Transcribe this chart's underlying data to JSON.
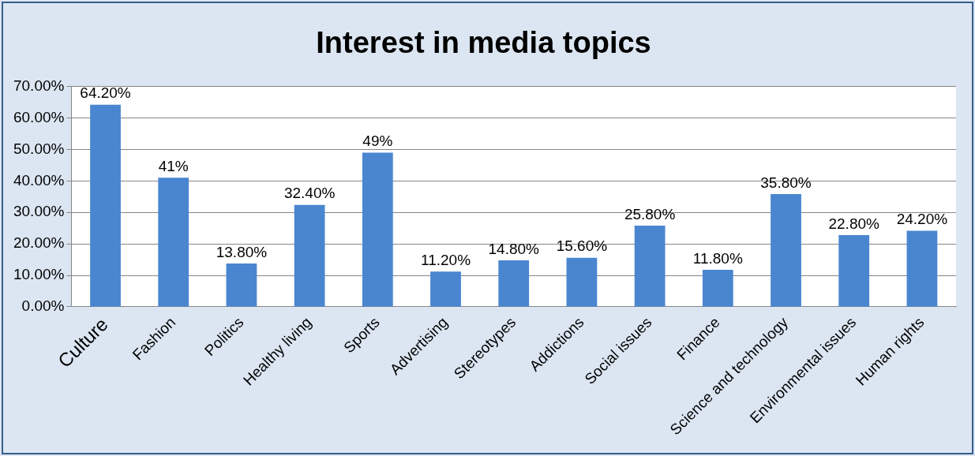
{
  "chart_data": {
    "type": "bar",
    "title": "Interest in media topics",
    "categories": [
      "Culture",
      "Fashion",
      "Politics",
      "Healthy living",
      "Sports",
      "Advertising",
      "Stereotypes",
      "Addictions",
      "Social issues",
      "Finance",
      "Science and technology",
      "Environmental issues",
      "Human rights"
    ],
    "values": [
      64.2,
      41,
      13.8,
      32.4,
      49,
      11.2,
      14.8,
      15.6,
      25.8,
      11.8,
      35.8,
      22.8,
      24.2
    ],
    "value_labels": [
      "64.20%",
      "41%",
      "13.80%",
      "32.40%",
      "49%",
      "11.20%",
      "14.80%",
      "15.60%",
      "25.80%",
      "11.80%",
      "35.80%",
      "22.80%",
      "24.20%"
    ],
    "color": "#4a86d0",
    "ylim": [
      0,
      70
    ],
    "yticks": [
      {
        "value": 0,
        "label": "0.00%"
      },
      {
        "value": 10,
        "label": "10.00%"
      },
      {
        "value": 20,
        "label": "20.00%"
      },
      {
        "value": 30,
        "label": "30.00%"
      },
      {
        "value": 40,
        "label": "40.00%"
      },
      {
        "value": 50,
        "label": "50.00%"
      },
      {
        "value": 60,
        "label": "60.00%"
      },
      {
        "value": 70,
        "label": "70.00%"
      }
    ],
    "grid": "y",
    "legend": false
  }
}
